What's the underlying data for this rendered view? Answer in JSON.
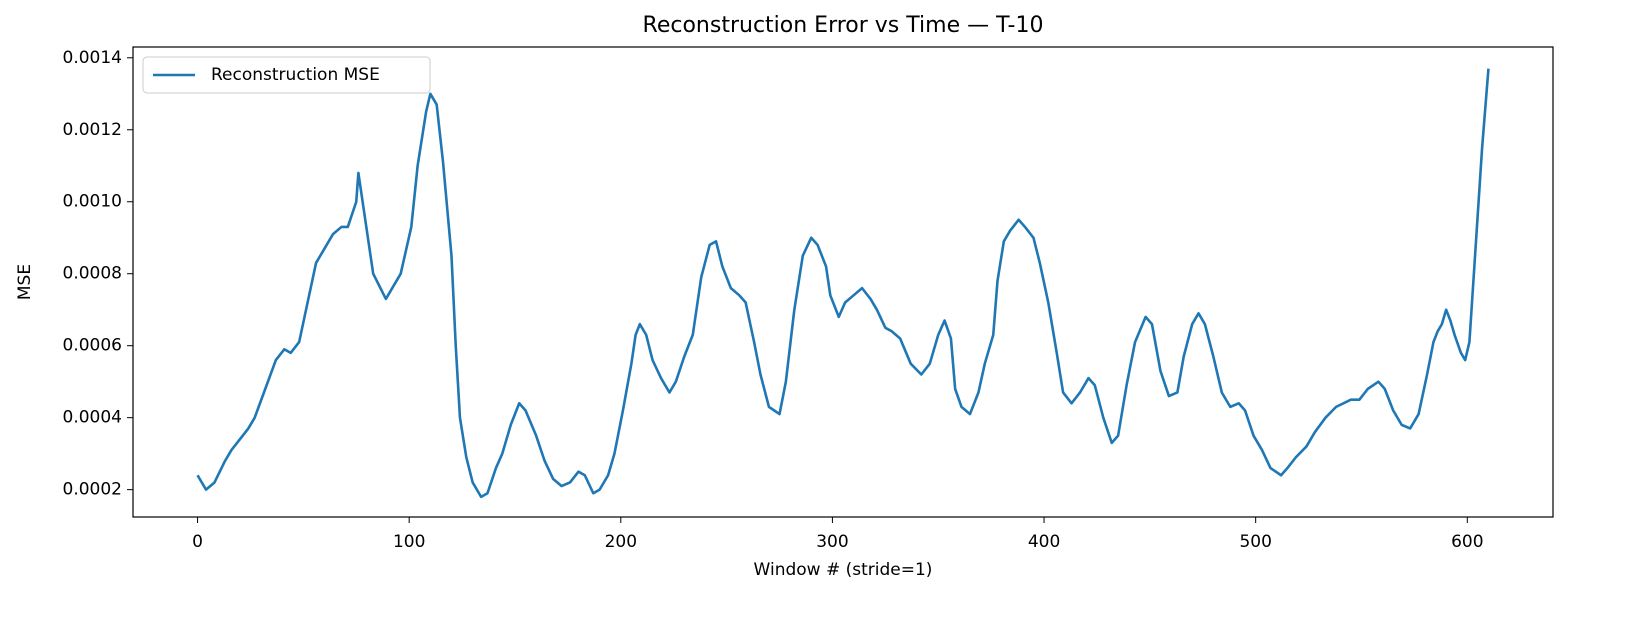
{
  "chart_data": {
    "type": "line",
    "title": "Reconstruction Error vs Time — T-10",
    "xlabel": "Window # (stride=1)",
    "ylabel": "MSE",
    "legend": "upper left",
    "grid": false,
    "xlim": [
      -30.5,
      640.5
    ],
    "ylim": [
      0.000124,
      0.00143
    ],
    "xticks": [
      0,
      100,
      200,
      300,
      400,
      500,
      600
    ],
    "yticks": [
      0.0002,
      0.0004,
      0.0006,
      0.0008,
      {
        "value": 0.001,
        "label": "0.0010"
      },
      0.0012,
      0.0014
    ],
    "series": [
      {
        "name": "Reconstruction MSE",
        "color": "#1f77b4",
        "x": [
          0,
          4,
          8,
          13,
          16,
          20,
          24,
          27,
          32,
          37,
          41,
          44,
          48,
          52,
          56,
          60,
          64,
          68,
          71,
          75,
          76,
          83,
          89,
          96,
          101,
          104,
          108,
          110,
          113,
          116,
          120,
          122,
          124,
          127,
          130,
          134,
          137,
          141,
          144,
          148,
          152,
          155,
          160,
          164,
          168,
          172,
          176,
          180,
          183,
          187,
          190,
          194,
          197,
          201,
          205,
          207,
          209,
          212,
          215,
          219,
          223,
          226,
          230,
          234,
          238,
          242,
          245,
          248,
          252,
          256,
          259,
          263,
          266,
          270,
          275,
          278,
          282,
          286,
          290,
          293,
          297,
          299,
          303,
          306,
          310,
          314,
          318,
          321,
          325,
          328,
          332,
          337,
          342,
          346,
          350,
          353,
          356,
          358,
          361,
          365,
          369,
          372,
          376,
          378,
          381,
          384,
          388,
          391,
          395,
          398,
          402,
          406,
          409,
          413,
          417,
          421,
          424,
          428,
          432,
          435,
          439,
          443,
          448,
          451,
          455,
          459,
          463,
          466,
          470,
          473,
          476,
          480,
          484,
          488,
          492,
          495,
          499,
          503,
          507,
          512,
          515,
          519,
          524,
          528,
          533,
          538,
          545,
          549,
          553,
          558,
          561,
          565,
          569,
          573,
          577,
          581,
          584,
          586,
          588,
          590,
          592,
          594,
          597,
          599,
          601,
          604,
          607,
          610
        ],
        "values": [
          0.00024,
          0.0002,
          0.00022,
          0.00028,
          0.00031,
          0.00034,
          0.00037,
          0.0004,
          0.00048,
          0.00056,
          0.00059,
          0.00058,
          0.00061,
          0.00072,
          0.00083,
          0.00087,
          0.00091,
          0.00093,
          0.00093,
          0.001,
          0.00108,
          0.0008,
          0.00073,
          0.0008,
          0.00093,
          0.0011,
          0.00125,
          0.0013,
          0.00127,
          0.00111,
          0.00085,
          0.0006,
          0.0004,
          0.00029,
          0.00022,
          0.00018,
          0.00019,
          0.00026,
          0.0003,
          0.00038,
          0.00044,
          0.00042,
          0.00035,
          0.00028,
          0.00023,
          0.00021,
          0.00022,
          0.00025,
          0.00024,
          0.00019,
          0.0002,
          0.00024,
          0.0003,
          0.00042,
          0.00055,
          0.00063,
          0.00066,
          0.00063,
          0.00056,
          0.00051,
          0.00047,
          0.0005,
          0.00057,
          0.00063,
          0.00079,
          0.00088,
          0.00089,
          0.00082,
          0.00076,
          0.00074,
          0.00072,
          0.00061,
          0.00052,
          0.00043,
          0.00041,
          0.0005,
          0.0007,
          0.00085,
          0.0009,
          0.00088,
          0.00082,
          0.00074,
          0.00068,
          0.00072,
          0.00074,
          0.00076,
          0.00073,
          0.0007,
          0.00065,
          0.00064,
          0.00062,
          0.00055,
          0.00052,
          0.00055,
          0.00063,
          0.00067,
          0.00062,
          0.00048,
          0.00043,
          0.00041,
          0.00047,
          0.00055,
          0.00063,
          0.00078,
          0.00089,
          0.00092,
          0.00095,
          0.00093,
          0.0009,
          0.00083,
          0.00072,
          0.00058,
          0.00047,
          0.00044,
          0.00047,
          0.00051,
          0.00049,
          0.0004,
          0.00033,
          0.00035,
          0.00049,
          0.00061,
          0.00068,
          0.00066,
          0.00053,
          0.00046,
          0.00047,
          0.00057,
          0.00066,
          0.00069,
          0.00066,
          0.00057,
          0.00047,
          0.00043,
          0.00044,
          0.00042,
          0.00035,
          0.00031,
          0.00026,
          0.00024,
          0.00026,
          0.00029,
          0.00032,
          0.00036,
          0.0004,
          0.00043,
          0.00045,
          0.00045,
          0.00048,
          0.0005,
          0.00048,
          0.00042,
          0.00038,
          0.00037,
          0.00041,
          0.00052,
          0.00061,
          0.00064,
          0.00066,
          0.0007,
          0.00067,
          0.00063,
          0.00058,
          0.00056,
          0.00061,
          0.00088,
          0.00115,
          0.00137
        ]
      }
    ]
  }
}
